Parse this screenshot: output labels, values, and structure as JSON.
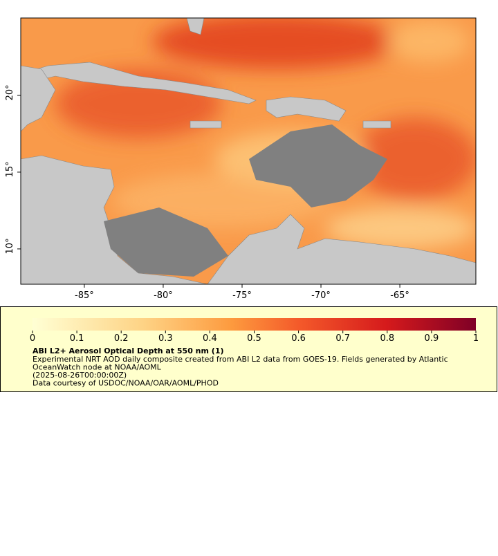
{
  "map": {
    "xlim": [
      -89.03,
      -60.18
    ],
    "ylim": [
      7.7,
      25.04
    ],
    "xticks": [
      {
        "value": -85,
        "label": "-85°"
      },
      {
        "value": -80,
        "label": "-80°"
      },
      {
        "value": -75,
        "label": "-75°"
      },
      {
        "value": -70,
        "label": "-70°"
      },
      {
        "value": -65,
        "label": "-65°"
      }
    ],
    "yticks": [
      {
        "value": 10,
        "label": "10°"
      },
      {
        "value": 15,
        "label": "15°"
      },
      {
        "value": 20,
        "label": "20°"
      }
    ]
  },
  "legend": {
    "colorbar_lim": [
      0,
      1
    ],
    "colorbar_ticks": [
      0,
      0.1,
      0.2,
      0.3,
      0.4,
      0.5,
      0.6,
      0.7,
      0.8,
      0.9,
      1
    ],
    "title": "ABI L2+ Aerosol Optical Depth at 550 nm (1)",
    "lines": [
      "Experimental NRT AOD daily composite created from ABI L2 data from GOES-19. Fields generated by Atlantic",
      "OceanWatch node at NOAA/AOML",
      "(2025-08-26T00:00:00Z)",
      "Data courtesy of USDOC/NOAA/OAR/AOML/PHOD"
    ]
  }
}
